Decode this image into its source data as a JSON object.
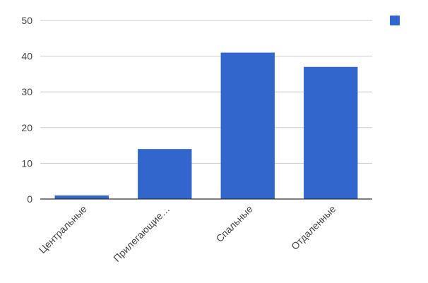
{
  "chart_data": {
    "type": "bar",
    "title": "",
    "xlabel": "",
    "ylabel": "",
    "categories": [
      "Центральные",
      "Прилегающие…",
      "Спальные",
      "Отдаленные"
    ],
    "series": [
      {
        "name": "",
        "values": [
          1,
          14,
          41,
          37
        ]
      }
    ],
    "ylim": [
      0,
      50
    ],
    "yticks": [
      0,
      10,
      20,
      30,
      40,
      50
    ],
    "grid": true,
    "legend": "top-right",
    "colors": {
      "bar": "#3366cc",
      "grid": "#cccccc",
      "axis": "#333333",
      "text": "#444444"
    }
  }
}
